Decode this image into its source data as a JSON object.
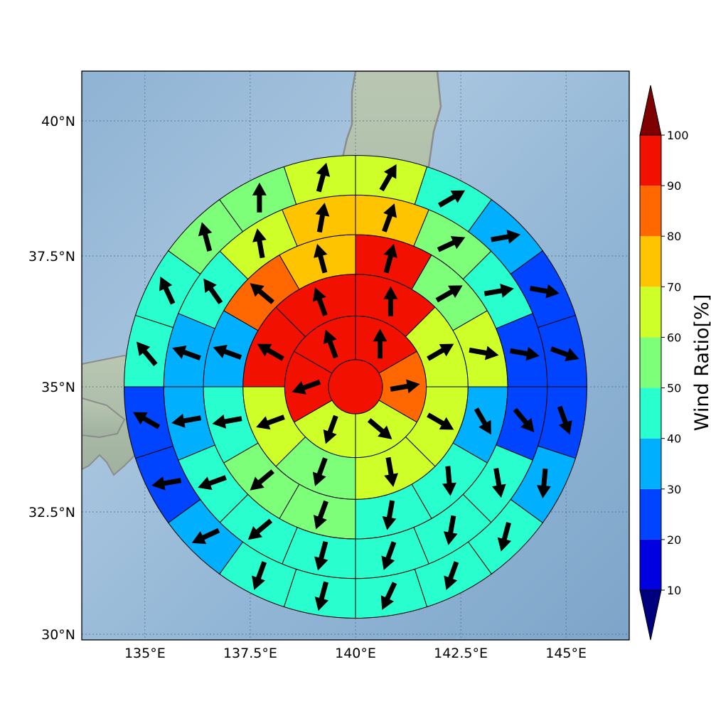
{
  "map": {
    "lon_range": [
      133.5,
      146.5
    ],
    "lat_range": [
      30,
      41
    ],
    "center": {
      "lon": 140,
      "lat": 35
    },
    "ring_radii_deg": [
      0.65,
      1.7,
      2.7,
      3.65,
      4.6,
      5.55
    ],
    "rings": [
      {
        "n_sectors": 1,
        "ratios": [
          100
        ],
        "arrow_dirs": [
          0
        ]
      },
      {
        "n_sectors": 6,
        "ratios": [
          100,
          85,
          60,
          60,
          92,
          92
        ],
        "arrow_dirs": [
          0,
          80,
          130,
          200,
          250,
          340
        ]
      },
      {
        "n_sectors": 8,
        "ratios": [
          100,
          62,
          62,
          62,
          55,
          62,
          92,
          92
        ],
        "arrow_dirs": [
          0,
          60,
          120,
          170,
          200,
          250,
          300,
          340
        ]
      },
      {
        "n_sectors": 12,
        "ratios": [
          92,
          55,
          62,
          35,
          45,
          45,
          55,
          55,
          45,
          35,
          82,
          72
        ],
        "arrow_dirs": [
          15,
          60,
          100,
          150,
          175,
          190,
          200,
          230,
          260,
          290,
          310,
          345
        ]
      },
      {
        "n_sectors": 16,
        "ratios": [
          72,
          55,
          45,
          22,
          22,
          45,
          45,
          45,
          45,
          42,
          45,
          35,
          32,
          42,
          62,
          72
        ],
        "arrow_dirs": [
          20,
          65,
          80,
          100,
          140,
          170,
          190,
          200,
          195,
          230,
          250,
          260,
          290,
          325,
          350,
          10
        ]
      },
      {
        "n_sectors": 20,
        "ratios": [
          65,
          45,
          32,
          22,
          22,
          22,
          32,
          42,
          42,
          45,
          42,
          42,
          32,
          25,
          22,
          42,
          45,
          55,
          55,
          65
        ],
        "arrow_dirs": [
          30,
          60,
          80,
          100,
          110,
          160,
          185,
          195,
          200,
          205,
          195,
          200,
          245,
          260,
          300,
          320,
          335,
          345,
          0,
          15
        ]
      }
    ],
    "x_ticks": [
      "135°E",
      "137.5°E",
      "140°E",
      "142.5°E",
      "145°E"
    ],
    "x_tick_values": [
      135,
      137.5,
      140,
      142.5,
      145
    ],
    "y_ticks": [
      "30°N",
      "32.5°N",
      "35°N",
      "37.5°N",
      "40°N"
    ],
    "y_tick_values": [
      30,
      32.5,
      35,
      37.5,
      40
    ]
  },
  "colorbar": {
    "title": "Wind Ratio[%]",
    "ticks": [
      "10",
      "20",
      "30",
      "40",
      "50",
      "60",
      "70",
      "80",
      "90",
      "100"
    ],
    "levels": [
      10,
      20,
      30,
      40,
      50,
      60,
      70,
      80,
      90,
      100
    ],
    "colors": [
      "#00007f",
      "#0000e0",
      "#0044ff",
      "#00b0ff",
      "#29ffce",
      "#7dff7a",
      "#ceff29",
      "#ffc400",
      "#ff6800",
      "#f21000",
      "#7f0000"
    ]
  }
}
